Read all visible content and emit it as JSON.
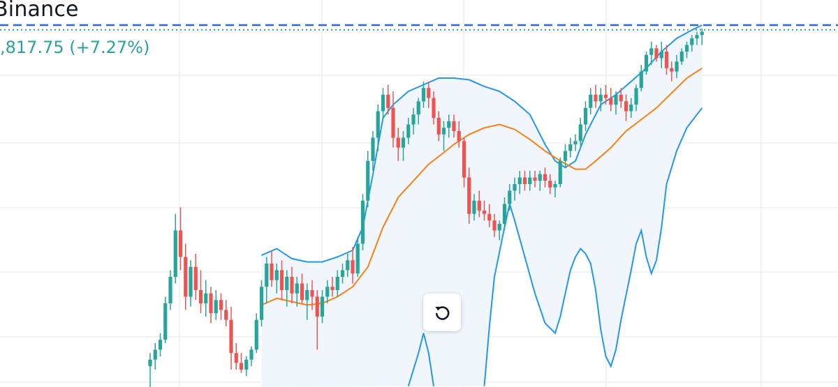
{
  "header": {
    "exchange": "Binance",
    "price_change": ",817.75 (+7.27%)"
  },
  "colors": {
    "up": "#26a69a",
    "down": "#ef5350",
    "band": "#2196f3",
    "middle": "#ff7f0e",
    "band_fill": "#eef5fc",
    "grid": "#e8eaee",
    "price_line": "#2962ff",
    "close_line": "#26a69a"
  },
  "reset_button": {
    "icon": "reset-icon"
  },
  "chart_data": {
    "type": "candlestick",
    "title": "",
    "xlabel": "",
    "ylabel": "",
    "ylim": [
      0,
      100
    ],
    "grid": true,
    "indicators": [
      "bollinger-upper",
      "bollinger-middle",
      "bollinger-lower"
    ],
    "candles": [
      {
        "o": 1,
        "h": 5,
        "l": -8,
        "c": 3
      },
      {
        "o": 3,
        "h": 8,
        "l": 0,
        "c": 6
      },
      {
        "o": 6,
        "h": 11,
        "l": 4,
        "c": 9
      },
      {
        "o": 9,
        "h": 22,
        "l": 8,
        "c": 20
      },
      {
        "o": 20,
        "h": 30,
        "l": 18,
        "c": 28
      },
      {
        "o": 28,
        "h": 47,
        "l": 26,
        "c": 42
      },
      {
        "o": 42,
        "h": 49,
        "l": 30,
        "c": 34
      },
      {
        "o": 34,
        "h": 38,
        "l": 18,
        "c": 22
      },
      {
        "o": 22,
        "h": 33,
        "l": 19,
        "c": 31
      },
      {
        "o": 31,
        "h": 35,
        "l": 21,
        "c": 24
      },
      {
        "o": 24,
        "h": 30,
        "l": 17,
        "c": 20
      },
      {
        "o": 20,
        "h": 27,
        "l": 16,
        "c": 23
      },
      {
        "o": 23,
        "h": 25,
        "l": 14,
        "c": 17
      },
      {
        "o": 17,
        "h": 24,
        "l": 15,
        "c": 21
      },
      {
        "o": 21,
        "h": 23,
        "l": 15,
        "c": 18
      },
      {
        "o": 18,
        "h": 21,
        "l": 13,
        "c": 15
      },
      {
        "o": 15,
        "h": 19,
        "l": 0,
        "c": 5
      },
      {
        "o": 5,
        "h": 8,
        "l": 0,
        "c": 2
      },
      {
        "o": 2,
        "h": 5,
        "l": -1,
        "c": 0
      },
      {
        "o": 0,
        "h": 4,
        "l": -2,
        "c": 3
      },
      {
        "o": 3,
        "h": 7,
        "l": 1,
        "c": 6
      },
      {
        "o": 6,
        "h": 17,
        "l": 5,
        "c": 15
      },
      {
        "o": 15,
        "h": 27,
        "l": 13,
        "c": 25
      },
      {
        "o": 25,
        "h": 34,
        "l": 20,
        "c": 32
      },
      {
        "o": 32,
        "h": 36,
        "l": 25,
        "c": 27
      },
      {
        "o": 27,
        "h": 32,
        "l": 23,
        "c": 30
      },
      {
        "o": 30,
        "h": 33,
        "l": 21,
        "c": 24
      },
      {
        "o": 24,
        "h": 30,
        "l": 19,
        "c": 28
      },
      {
        "o": 28,
        "h": 31,
        "l": 20,
        "c": 23
      },
      {
        "o": 23,
        "h": 28,
        "l": 19,
        "c": 26
      },
      {
        "o": 26,
        "h": 29,
        "l": 20,
        "c": 21
      },
      {
        "o": 21,
        "h": 26,
        "l": 15,
        "c": 24
      },
      {
        "o": 24,
        "h": 27,
        "l": 18,
        "c": 22
      },
      {
        "o": 22,
        "h": 24,
        "l": 6,
        "c": 16
      },
      {
        "o": 16,
        "h": 24,
        "l": 14,
        "c": 22
      },
      {
        "o": 22,
        "h": 27,
        "l": 20,
        "c": 25
      },
      {
        "o": 25,
        "h": 28,
        "l": 22,
        "c": 24
      },
      {
        "o": 24,
        "h": 30,
        "l": 22,
        "c": 28
      },
      {
        "o": 28,
        "h": 32,
        "l": 26,
        "c": 30
      },
      {
        "o": 30,
        "h": 35,
        "l": 28,
        "c": 33
      },
      {
        "o": 33,
        "h": 37,
        "l": 26,
        "c": 29
      },
      {
        "o": 29,
        "h": 40,
        "l": 28,
        "c": 38
      },
      {
        "o": 38,
        "h": 53,
        "l": 36,
        "c": 51
      },
      {
        "o": 51,
        "h": 66,
        "l": 49,
        "c": 63
      },
      {
        "o": 63,
        "h": 72,
        "l": 60,
        "c": 70
      },
      {
        "o": 70,
        "h": 80,
        "l": 66,
        "c": 78
      },
      {
        "o": 78,
        "h": 85,
        "l": 76,
        "c": 83
      },
      {
        "o": 83,
        "h": 86,
        "l": 77,
        "c": 79
      },
      {
        "o": 79,
        "h": 84,
        "l": 67,
        "c": 70
      },
      {
        "o": 70,
        "h": 73,
        "l": 63,
        "c": 67
      },
      {
        "o": 67,
        "h": 72,
        "l": 63,
        "c": 70
      },
      {
        "o": 70,
        "h": 76,
        "l": 68,
        "c": 74
      },
      {
        "o": 74,
        "h": 79,
        "l": 71,
        "c": 77
      },
      {
        "o": 77,
        "h": 82,
        "l": 74,
        "c": 81
      },
      {
        "o": 81,
        "h": 87,
        "l": 79,
        "c": 85
      },
      {
        "o": 85,
        "h": 87,
        "l": 79,
        "c": 82
      },
      {
        "o": 82,
        "h": 84,
        "l": 74,
        "c": 76
      },
      {
        "o": 76,
        "h": 78,
        "l": 69,
        "c": 71
      },
      {
        "o": 71,
        "h": 75,
        "l": 66,
        "c": 73
      },
      {
        "o": 73,
        "h": 77,
        "l": 70,
        "c": 75
      },
      {
        "o": 75,
        "h": 77,
        "l": 70,
        "c": 72
      },
      {
        "o": 72,
        "h": 75,
        "l": 67,
        "c": 69
      },
      {
        "o": 69,
        "h": 70,
        "l": 55,
        "c": 58
      },
      {
        "o": 58,
        "h": 61,
        "l": 44,
        "c": 47
      },
      {
        "o": 47,
        "h": 53,
        "l": 45,
        "c": 51
      },
      {
        "o": 51,
        "h": 54,
        "l": 46,
        "c": 48
      },
      {
        "o": 48,
        "h": 51,
        "l": 45,
        "c": 47
      },
      {
        "o": 47,
        "h": 50,
        "l": 43,
        "c": 45
      },
      {
        "o": 45,
        "h": 47,
        "l": 40,
        "c": 42
      },
      {
        "o": 42,
        "h": 45,
        "l": 39,
        "c": 44
      },
      {
        "o": 44,
        "h": 52,
        "l": 42,
        "c": 50
      },
      {
        "o": 50,
        "h": 56,
        "l": 48,
        "c": 54
      },
      {
        "o": 54,
        "h": 58,
        "l": 51,
        "c": 56
      },
      {
        "o": 56,
        "h": 60,
        "l": 53,
        "c": 58
      },
      {
        "o": 58,
        "h": 60,
        "l": 54,
        "c": 56
      },
      {
        "o": 56,
        "h": 60,
        "l": 54,
        "c": 58
      },
      {
        "o": 58,
        "h": 60,
        "l": 55,
        "c": 57
      },
      {
        "o": 57,
        "h": 60,
        "l": 54,
        "c": 59
      },
      {
        "o": 59,
        "h": 61,
        "l": 55,
        "c": 57
      },
      {
        "o": 57,
        "h": 59,
        "l": 53,
        "c": 55
      },
      {
        "o": 55,
        "h": 57,
        "l": 52,
        "c": 56
      },
      {
        "o": 56,
        "h": 64,
        "l": 55,
        "c": 63
      },
      {
        "o": 63,
        "h": 68,
        "l": 61,
        "c": 66
      },
      {
        "o": 66,
        "h": 70,
        "l": 64,
        "c": 68
      },
      {
        "o": 68,
        "h": 71,
        "l": 66,
        "c": 69
      },
      {
        "o": 69,
        "h": 76,
        "l": 67,
        "c": 74
      },
      {
        "o": 74,
        "h": 81,
        "l": 72,
        "c": 79
      },
      {
        "o": 79,
        "h": 85,
        "l": 77,
        "c": 83
      },
      {
        "o": 83,
        "h": 86,
        "l": 79,
        "c": 81
      },
      {
        "o": 81,
        "h": 85,
        "l": 78,
        "c": 83
      },
      {
        "o": 83,
        "h": 86,
        "l": 80,
        "c": 82
      },
      {
        "o": 82,
        "h": 85,
        "l": 78,
        "c": 80
      },
      {
        "o": 80,
        "h": 84,
        "l": 77,
        "c": 83
      },
      {
        "o": 83,
        "h": 85,
        "l": 79,
        "c": 81
      },
      {
        "o": 81,
        "h": 83,
        "l": 75,
        "c": 78
      },
      {
        "o": 78,
        "h": 82,
        "l": 76,
        "c": 80
      },
      {
        "o": 80,
        "h": 86,
        "l": 78,
        "c": 85
      },
      {
        "o": 85,
        "h": 92,
        "l": 84,
        "c": 90
      },
      {
        "o": 90,
        "h": 96,
        "l": 89,
        "c": 95
      },
      {
        "o": 95,
        "h": 99,
        "l": 92,
        "c": 97
      },
      {
        "o": 97,
        "h": 98,
        "l": 93,
        "c": 94
      },
      {
        "o": 94,
        "h": 99,
        "l": 91,
        "c": 96
      },
      {
        "o": 96,
        "h": 98,
        "l": 89,
        "c": 91
      },
      {
        "o": 91,
        "h": 93,
        "l": 87,
        "c": 90
      },
      {
        "o": 90,
        "h": 95,
        "l": 88,
        "c": 93
      },
      {
        "o": 93,
        "h": 97,
        "l": 92,
        "c": 96
      },
      {
        "o": 96,
        "h": 99,
        "l": 94,
        "c": 98
      },
      {
        "o": 98,
        "h": 101,
        "l": 96,
        "c": 100
      },
      {
        "o": 100,
        "h": 102,
        "l": 98,
        "c": 101
      },
      {
        "o": 101,
        "h": 103,
        "l": 98,
        "c": 102
      }
    ],
    "band_start_index": 22,
    "upper_band": [
      [
        22,
        34.5
      ],
      [
        25,
        36.5
      ],
      [
        28,
        33.5
      ],
      [
        31,
        32.5
      ],
      [
        34,
        32.5
      ],
      [
        37,
        34
      ],
      [
        40,
        36
      ],
      [
        42,
        43
      ],
      [
        44,
        59
      ],
      [
        46,
        76
      ],
      [
        48,
        80
      ],
      [
        51,
        84
      ],
      [
        54,
        86
      ],
      [
        57,
        88
      ],
      [
        60,
        88
      ],
      [
        63,
        87.5
      ],
      [
        66,
        85.5
      ],
      [
        69,
        84
      ],
      [
        72,
        81
      ],
      [
        75,
        77
      ],
      [
        78,
        68
      ],
      [
        80,
        63
      ],
      [
        82,
        61
      ],
      [
        84,
        63
      ],
      [
        86,
        71
      ],
      [
        89,
        80
      ],
      [
        92,
        83
      ],
      [
        95,
        87
      ],
      [
        98,
        91
      ],
      [
        101,
        96
      ],
      [
        104,
        100
      ],
      [
        107,
        102.5
      ],
      [
        109,
        104
      ]
    ],
    "middle_band": [
      [
        22,
        19.5
      ],
      [
        25,
        21.5
      ],
      [
        28,
        20.5
      ],
      [
        31,
        19.5
      ],
      [
        34,
        20
      ],
      [
        37,
        22
      ],
      [
        40,
        25
      ],
      [
        43,
        31
      ],
      [
        46,
        43
      ],
      [
        49,
        52
      ],
      [
        52,
        57
      ],
      [
        55,
        62
      ],
      [
        58,
        65.5
      ],
      [
        60,
        68
      ],
      [
        63,
        71
      ],
      [
        66,
        73
      ],
      [
        69,
        74
      ],
      [
        72,
        72.5
      ],
      [
        75,
        69.5
      ],
      [
        78,
        66
      ],
      [
        81,
        63
      ],
      [
        84,
        60.5
      ],
      [
        86,
        60.5
      ],
      [
        88,
        63
      ],
      [
        91,
        67
      ],
      [
        94,
        72
      ],
      [
        97,
        75.5
      ],
      [
        100,
        79
      ],
      [
        103,
        83.5
      ],
      [
        106,
        88
      ],
      [
        109,
        91
      ]
    ],
    "lower_band": [
      [
        51,
        -5
      ],
      [
        53,
        5
      ],
      [
        54,
        11
      ],
      [
        55,
        5
      ],
      [
        56,
        -5
      ]
    ],
    "lower_band_2": [
      [
        66,
        -5
      ],
      [
        67,
        13
      ],
      [
        68,
        28
      ],
      [
        70,
        43
      ],
      [
        71,
        50
      ],
      [
        72,
        45
      ],
      [
        74,
        34
      ],
      [
        76,
        23
      ],
      [
        78,
        14
      ],
      [
        80,
        11
      ],
      [
        81,
        16
      ],
      [
        82,
        23
      ],
      [
        83,
        30
      ],
      [
        84,
        34
      ],
      [
        85,
        36.5
      ],
      [
        86,
        35
      ],
      [
        87,
        32
      ],
      [
        88,
        24
      ],
      [
        89,
        12
      ],
      [
        90,
        4
      ],
      [
        91,
        1
      ],
      [
        92,
        6
      ],
      [
        93,
        15
      ],
      [
        95,
        30
      ],
      [
        96,
        38
      ],
      [
        97,
        42
      ],
      [
        98,
        34
      ],
      [
        99,
        29
      ],
      [
        100,
        33
      ],
      [
        101,
        43
      ],
      [
        102,
        56
      ],
      [
        104,
        66
      ],
      [
        106,
        73
      ],
      [
        109,
        79
      ]
    ],
    "last_price": 104,
    "prev_close": 103
  }
}
